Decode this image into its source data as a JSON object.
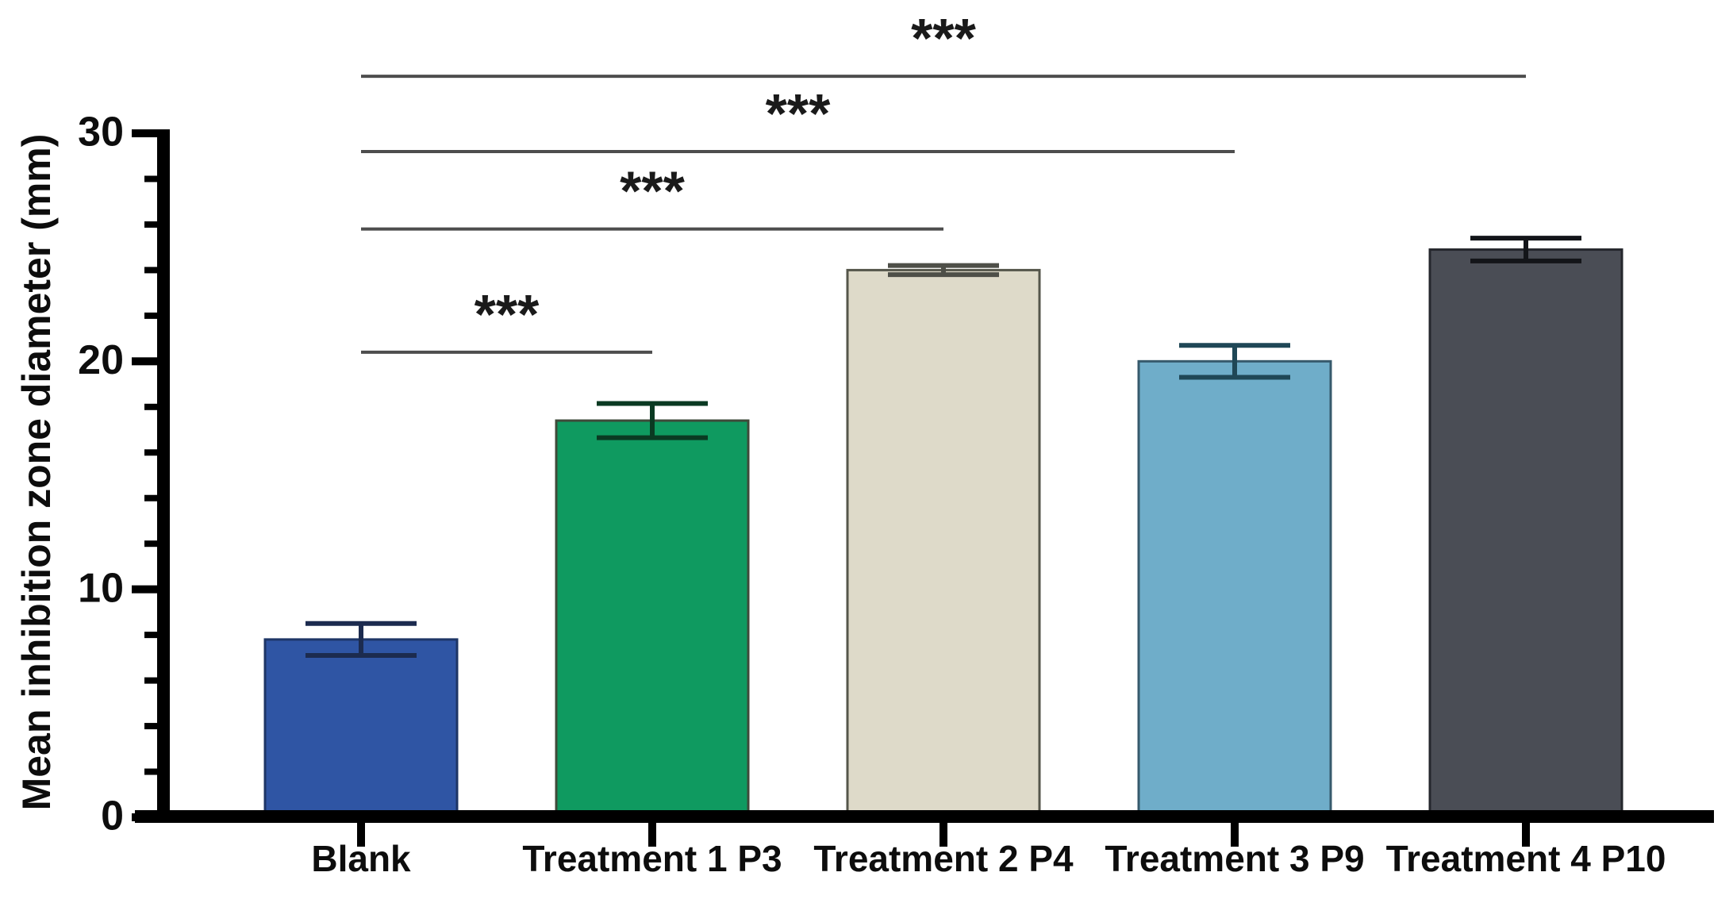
{
  "figure": {
    "background": "#ffffff",
    "text_color": "#0d0d0d"
  },
  "chart_data": {
    "type": "bar",
    "title": "",
    "xlabel": "",
    "ylabel": "Mean inhibition zone diameter (mm)",
    "ylim": [
      0,
      30
    ],
    "ytick_major": [
      0,
      10,
      20,
      30
    ],
    "ytick_minor_step": 2,
    "grid": false,
    "legend": "none",
    "categories": [
      "Blank",
      "Treatment 1 P3",
      "Treatment 2 P4",
      "Treatment 3 P9",
      "Treatment 4 P10"
    ],
    "series": [
      {
        "name": "Mean inhibition zone diameter (mm)",
        "values": [
          7.8,
          17.4,
          24.0,
          20.0,
          24.9
        ],
        "errors": [
          0.7,
          0.75,
          0.2,
          0.7,
          0.5
        ]
      }
    ],
    "bar_colors": [
      "#2f55a4",
      "#0f9a60",
      "#dedac9",
      "#6fadc9",
      "#4a4d55"
    ],
    "bar_border_colors": [
      "#1d3566",
      "#3f4a3a",
      "#55564b",
      "#375a6c",
      "#25272d"
    ],
    "error_colors": [
      "#1c2b4f",
      "#0a3a22",
      "#4e4f48",
      "#1f4756",
      "#131519"
    ],
    "axis_color": "#000000",
    "tick_label_color": "#0d0d0d",
    "sig_line_color": "#4d4d4d",
    "sig_label_color": "#1a1a1a",
    "significance": [
      {
        "from": 0,
        "to": 1,
        "label": "***",
        "y_value": 20.4
      },
      {
        "from": 0,
        "to": 2,
        "label": "***",
        "y_value": 25.8
      },
      {
        "from": 0,
        "to": 3,
        "label": "***",
        "y_value": 29.2
      },
      {
        "from": 0,
        "to": 4,
        "label": "***",
        "y_value": 32.5
      }
    ]
  }
}
